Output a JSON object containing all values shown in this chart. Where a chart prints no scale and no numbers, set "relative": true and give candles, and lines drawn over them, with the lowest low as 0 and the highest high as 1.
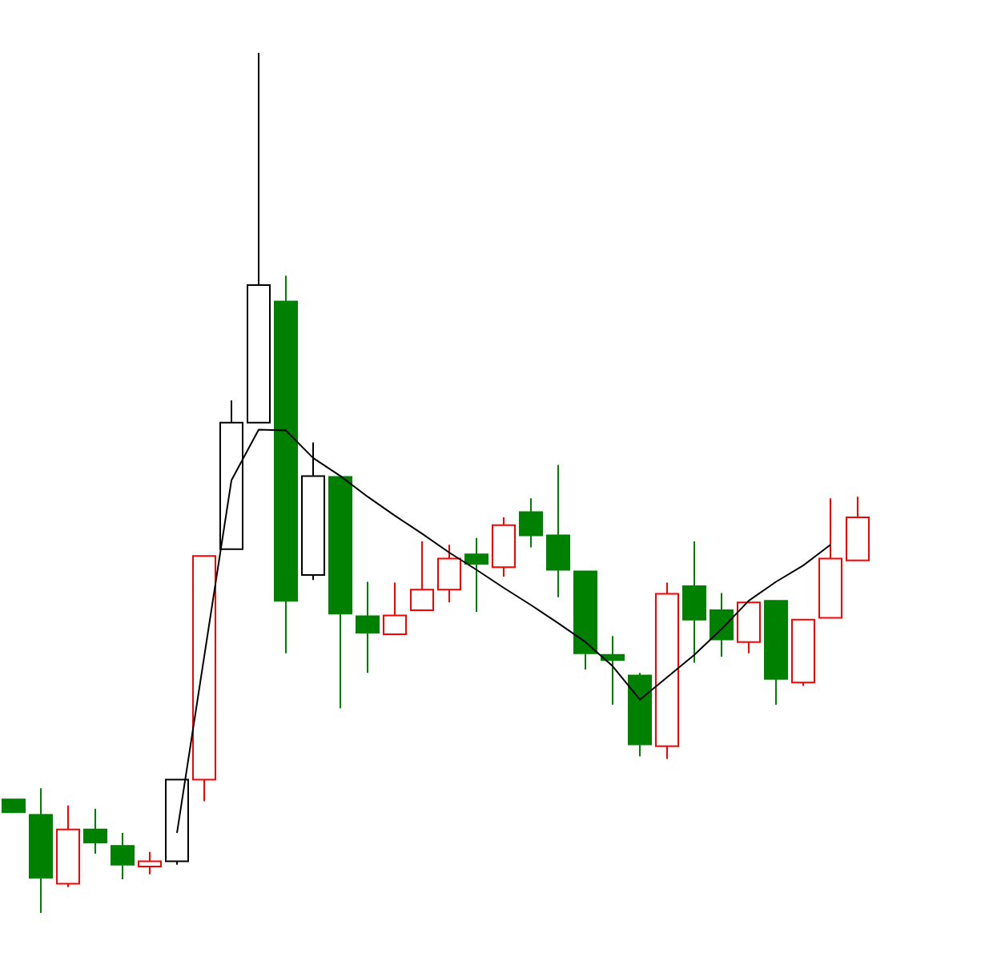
{
  "chart_data": {
    "type": "candlestick",
    "relative": true,
    "categories": [
      null,
      null,
      null,
      null,
      null,
      null,
      null,
      null,
      null,
      null,
      null,
      null,
      null,
      null,
      null,
      null,
      null,
      null,
      null,
      null,
      null,
      null,
      null,
      null,
      null,
      null,
      null,
      null,
      null,
      null,
      null,
      null
    ],
    "ohlc": [
      [
        0.132,
        0.132,
        0.117,
        0.117
      ],
      [
        0.114,
        0.145,
        0,
        0.041
      ],
      [
        0.034,
        0.125,
        0.03,
        0.097
      ],
      [
        0.097,
        0.121,
        0.069,
        0.082
      ],
      [
        0.078,
        0.093,
        0.039,
        0.056
      ],
      [
        0.054,
        0.071,
        0.045,
        0.06
      ],
      [
        0.06,
        0.155,
        0.056,
        0.155
      ],
      [
        0.155,
        0.415,
        0.13,
        0.415
      ],
      [
        0.423,
        0.596,
        0.423,
        0.57
      ],
      [
        0.57,
        1,
        0.57,
        0.73
      ],
      [
        0.711,
        0.741,
        0.302,
        0.363
      ],
      [
        0.393,
        0.547,
        0.387,
        0.508
      ],
      [
        0.507,
        0.507,
        0.238,
        0.348
      ],
      [
        0.345,
        0.385,
        0.279,
        0.326
      ],
      [
        0.324,
        0.384,
        0.324,
        0.346
      ],
      [
        0.352,
        0.432,
        0.352,
        0.376
      ],
      [
        0.376,
        0.428,
        0.361,
        0.412
      ],
      [
        0.417,
        0.436,
        0.35,
        0.406
      ],
      [
        0.402,
        0.46,
        0.391,
        0.451
      ],
      [
        0.466,
        0.482,
        0.425,
        0.439
      ],
      [
        0.439,
        0.521,
        0.367,
        0.399
      ],
      [
        0.397,
        0.397,
        0.283,
        0.302
      ],
      [
        0.3,
        0.322,
        0.242,
        0.294
      ],
      [
        0.276,
        0.279,
        0.182,
        0.196
      ],
      [
        0.194,
        0.384,
        0.179,
        0.371
      ],
      [
        0.38,
        0.432,
        0.291,
        0.341
      ],
      [
        0.352,
        0.372,
        0.298,
        0.318
      ],
      [
        0.315,
        0.361,
        0.302,
        0.361
      ],
      [
        0.363,
        0.363,
        0.242,
        0.272
      ],
      [
        0.268,
        0.341,
        0.264,
        0.341
      ],
      [
        0.343,
        0.482,
        0.343,
        0.412
      ],
      [
        0.41,
        0.484,
        0.41,
        0.46
      ]
    ],
    "colors": [
      "#008000",
      "#008000",
      "#ff0000",
      "#008000",
      "#008000",
      "#ff0000",
      "#000000",
      "#ff0000",
      "#000000",
      "#000000",
      "#008000",
      "#000000",
      "#008000",
      "#008000",
      "#ff0000",
      "#ff0000",
      "#ff0000",
      "#008000",
      "#ff0000",
      "#008000",
      "#008000",
      "#008000",
      "#008000",
      "#008000",
      "#ff0000",
      "#008000",
      "#008000",
      "#ff0000",
      "#008000",
      "#ff0000",
      "#ff0000",
      "#ff0000"
    ],
    "series": [
      {
        "type": "line",
        "color": "#000000",
        "values": [
          null,
          null,
          null,
          null,
          null,
          null,
          0.093,
          0.298,
          0.503,
          0.562,
          0.561,
          0.529,
          0.508,
          0.484,
          0.462,
          0.441,
          0.419,
          0.399,
          0.378,
          0.358,
          0.337,
          0.315,
          0.287,
          0.248,
          0.274,
          0.3,
          0.33,
          0.363,
          0.385,
          0.404,
          0.428,
          null
        ]
      }
    ],
    "marker": "none"
  }
}
